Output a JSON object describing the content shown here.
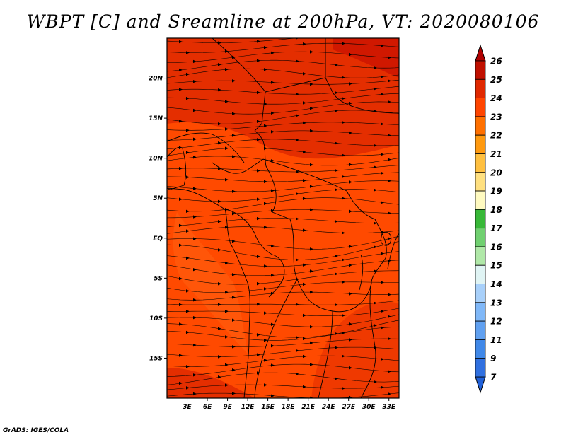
{
  "title": "WBPT [C] and Sreamline at 200hPa, VT: 2020080106",
  "credit": "GrADS: IGES/COLA",
  "lat_ticks": [
    {
      "value": 20,
      "label": "20N"
    },
    {
      "value": 15,
      "label": "15N"
    },
    {
      "value": 10,
      "label": "10N"
    },
    {
      "value": 5,
      "label": "5N"
    },
    {
      "value": 0,
      "label": "EQ"
    },
    {
      "value": -5,
      "label": "5S"
    },
    {
      "value": -10,
      "label": "10S"
    },
    {
      "value": -15,
      "label": "15S"
    }
  ],
  "lon_ticks": [
    {
      "value": 3,
      "label": "3E"
    },
    {
      "value": 6,
      "label": "6E"
    },
    {
      "value": 9,
      "label": "9E"
    },
    {
      "value": 12,
      "label": "12E"
    },
    {
      "value": 15,
      "label": "15E"
    },
    {
      "value": 18,
      "label": "18E"
    },
    {
      "value": 21,
      "label": "21E"
    },
    {
      "value": 24,
      "label": "24E"
    },
    {
      "value": 27,
      "label": "27E"
    },
    {
      "value": 30,
      "label": "30E"
    },
    {
      "value": 33,
      "label": "33E"
    }
  ],
  "extent": {
    "lon_min": 0,
    "lon_max": 34.5,
    "lat_min": -20,
    "lat_max": 25
  },
  "colorbar": {
    "levels": [
      {
        "label": "7",
        "color": "#2060d8"
      },
      {
        "label": "9",
        "color": "#3070e0"
      },
      {
        "label": "11",
        "color": "#4088e8"
      },
      {
        "label": "12",
        "color": "#60a0f0"
      },
      {
        "label": "13",
        "color": "#80b8f8"
      },
      {
        "label": "14",
        "color": "#a8d0fa"
      },
      {
        "label": "15",
        "color": "#e0f4f4"
      },
      {
        "label": "16",
        "color": "#b0e8a8"
      },
      {
        "label": "17",
        "color": "#70d070"
      },
      {
        "label": "18",
        "color": "#38b838"
      },
      {
        "label": "19",
        "color": "#fffac0"
      },
      {
        "label": "20",
        "color": "#ffe080"
      },
      {
        "label": "21",
        "color": "#ffc040"
      },
      {
        "label": "22",
        "color": "#ff9a10"
      },
      {
        "label": "23",
        "color": "#ff7000"
      },
      {
        "label": "24",
        "color": "#ff4500"
      },
      {
        "label": "25",
        "color": "#e02800"
      },
      {
        "label": "26",
        "color": "#c01000"
      }
    ],
    "under_color": "#2060d8",
    "over_color": "#b00000"
  },
  "field_colors": {
    "base": "#ff4a00",
    "warm": "#e42e00",
    "hot": "#d01800",
    "cool": "#ff6010"
  }
}
